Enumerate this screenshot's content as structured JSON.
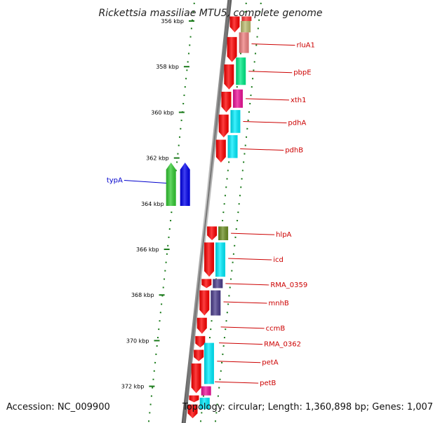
{
  "title": "Rickettsia massiliae MTU5, complete genome",
  "footer": {
    "accession": "Accession: NC_009900",
    "topology": "Topology: circular; Length: 1,360,898 bp; Genes: 1,007"
  },
  "ticks": [
    "356 kbp",
    "358 kbp",
    "360 kbp",
    "362 kbp",
    "364 kbp",
    "366 kbp",
    "368 kbp",
    "370 kbp",
    "372 kbp"
  ],
  "features": [
    {
      "strand": "+",
      "color": "#ff0000",
      "start": 355.8,
      "end": 356.5
    },
    {
      "strand": "+",
      "color": "#ff0000",
      "start": 356.7,
      "end": 357.8
    },
    {
      "strand": "+",
      "color": "#ff0000",
      "start": 357.9,
      "end": 359.0
    },
    {
      "strand": "+",
      "color": "#ff0000",
      "start": 359.1,
      "end": 360.0
    },
    {
      "strand": "+",
      "color": "#ff0000",
      "start": 360.1,
      "end": 361.1
    },
    {
      "strand": "+",
      "color": "#ff0000",
      "start": 361.2,
      "end": 362.2
    },
    {
      "strand": "+",
      "color": "#ff0000",
      "start": 365.0,
      "end": 365.6
    },
    {
      "strand": "+",
      "color": "#ff0000",
      "start": 365.7,
      "end": 367.2
    },
    {
      "strand": "+",
      "color": "#ff0000",
      "start": 367.3,
      "end": 367.7
    },
    {
      "strand": "+",
      "color": "#ff0000",
      "start": 367.8,
      "end": 368.9
    },
    {
      "strand": "+",
      "color": "#ff0000",
      "start": 369.0,
      "end": 369.7
    },
    {
      "strand": "+",
      "color": "#ff0000",
      "start": 369.8,
      "end": 370.3
    },
    {
      "strand": "+",
      "color": "#ff0000",
      "start": 370.4,
      "end": 370.9
    },
    {
      "strand": "+",
      "color": "#ff0000",
      "start": 371.0,
      "end": 372.3
    },
    {
      "strand": "+",
      "color": "#ff0000",
      "start": 372.4,
      "end": 372.7
    },
    {
      "strand": "+",
      "color": "#ff0000",
      "start": 372.8,
      "end": 373.4
    },
    {
      "strand": "+",
      "color": "#ff3333",
      "start": 355.8,
      "end": 356.0
    },
    {
      "strand": "+",
      "color": "#bdbd70",
      "start": 356.0,
      "end": 356.5
    },
    {
      "strand": "+",
      "color": "#f08080",
      "start": 356.5,
      "end": 357.4
    },
    {
      "strand": "+",
      "color": "#00ee88",
      "start": 357.6,
      "end": 358.8
    },
    {
      "strand": "+",
      "color": "#ee1199",
      "start": 359.0,
      "end": 359.8
    },
    {
      "strand": "+",
      "color": "#00eeff",
      "start": 359.9,
      "end": 360.9
    },
    {
      "strand": "+",
      "color": "#00eeff",
      "start": 361.0,
      "end": 362.0
    },
    {
      "strand": "+",
      "color": "#6b8e23",
      "start": 365.0,
      "end": 365.6
    },
    {
      "strand": "+",
      "color": "#00eeff",
      "start": 365.7,
      "end": 367.2
    },
    {
      "strand": "+",
      "color": "#4b3c8c",
      "start": 367.3,
      "end": 367.7
    },
    {
      "strand": "+",
      "color": "#4b3c8c",
      "start": 367.8,
      "end": 368.9
    },
    {
      "strand": "+",
      "color": "#00eeff",
      "start": 370.1,
      "end": 371.9
    },
    {
      "strand": "+",
      "color": "#ee1199",
      "start": 372.0,
      "end": 372.4
    },
    {
      "strand": "+",
      "color": "#00eeff",
      "start": 372.5,
      "end": 373.0
    },
    {
      "strand": "-",
      "color": "#33cc33",
      "start": 362.2,
      "end": 364.1
    },
    {
      "strand": "-",
      "color": "#0000ee",
      "start": 362.2,
      "end": 364.1
    }
  ],
  "gene_labels": [
    {
      "name": "rluA1",
      "pos": 357.0,
      "side": "right",
      "color": "#cc0000"
    },
    {
      "name": "pbpE",
      "pos": 358.2,
      "side": "right",
      "color": "#cc0000"
    },
    {
      "name": "xth1",
      "pos": 359.4,
      "side": "right",
      "color": "#cc0000"
    },
    {
      "name": "pdhA",
      "pos": 360.4,
      "side": "right",
      "color": "#cc0000"
    },
    {
      "name": "pdhB",
      "pos": 361.6,
      "side": "right",
      "color": "#cc0000"
    },
    {
      "name": "typA",
      "pos": 363.1,
      "side": "left",
      "color": "#0000cc"
    },
    {
      "name": "hlpA",
      "pos": 365.3,
      "side": "right",
      "color": "#cc0000"
    },
    {
      "name": "icd",
      "pos": 366.4,
      "side": "right",
      "color": "#cc0000"
    },
    {
      "name": "RMA_0359",
      "pos": 367.5,
      "side": "right",
      "color": "#cc0000"
    },
    {
      "name": "mnhB",
      "pos": 368.3,
      "side": "right",
      "color": "#cc0000"
    },
    {
      "name": "ccmB",
      "pos": 369.4,
      "side": "right",
      "color": "#cc0000"
    },
    {
      "name": "RMA_0362",
      "pos": 370.1,
      "side": "right",
      "color": "#cc0000"
    },
    {
      "name": "petA",
      "pos": 370.9,
      "side": "right",
      "color": "#cc0000"
    },
    {
      "name": "petB",
      "pos": 371.8,
      "side": "right",
      "color": "#cc0000"
    }
  ]
}
